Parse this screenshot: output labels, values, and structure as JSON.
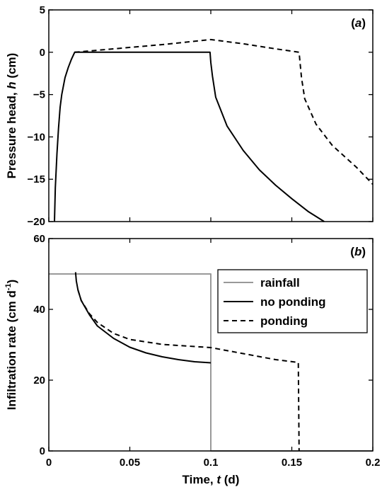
{
  "chart_data": [
    {
      "type": "line",
      "panel_label": "(a)",
      "ylabel": "Pressure head, h (cm)",
      "ylim": [
        -20,
        5
      ],
      "yticks": [
        5,
        0,
        -5,
        -10,
        -15,
        -20
      ],
      "xlim": [
        0,
        0.2
      ],
      "series": [
        {
          "style": "solid",
          "color": "#000000",
          "points": [
            [
              0.0035,
              -20
            ],
            [
              0.004,
              -16
            ],
            [
              0.005,
              -12
            ],
            [
              0.006,
              -9
            ],
            [
              0.007,
              -6.5
            ],
            [
              0.008,
              -5
            ],
            [
              0.01,
              -3
            ],
            [
              0.012,
              -1.8
            ],
            [
              0.014,
              -0.8
            ],
            [
              0.016,
              0
            ],
            [
              0.04,
              0
            ],
            [
              0.07,
              0
            ],
            [
              0.0995,
              0
            ],
            [
              0.1,
              -1.2
            ],
            [
              0.101,
              -2.8
            ],
            [
              0.103,
              -5.3
            ],
            [
              0.11,
              -8.7
            ],
            [
              0.12,
              -11.6
            ],
            [
              0.13,
              -13.9
            ],
            [
              0.14,
              -15.7
            ],
            [
              0.15,
              -17.3
            ],
            [
              0.16,
              -18.8
            ],
            [
              0.17,
              -20
            ]
          ]
        },
        {
          "style": "dashed",
          "color": "#000000",
          "points": [
            [
              0.016,
              0
            ],
            [
              0.04,
              0.4
            ],
            [
              0.07,
              0.9
            ],
            [
              0.1,
              1.5
            ],
            [
              0.12,
              1.0
            ],
            [
              0.14,
              0.4
            ],
            [
              0.1545,
              0
            ],
            [
              0.155,
              -1
            ],
            [
              0.156,
              -3
            ],
            [
              0.158,
              -5.5
            ],
            [
              0.165,
              -8.5
            ],
            [
              0.175,
              -11
            ],
            [
              0.19,
              -13.6
            ],
            [
              0.2,
              -15.6
            ]
          ]
        }
      ]
    },
    {
      "type": "line",
      "panel_label": "(b)",
      "ylabel": "Infiltration rate (cm d-1)",
      "xlabel": "Time, t (d)",
      "ylim": [
        0,
        60
      ],
      "yticks": [
        0,
        20,
        40,
        60
      ],
      "xlim": [
        0,
        0.2
      ],
      "xticks": [
        0,
        0.05,
        0.1,
        0.15,
        0.2
      ],
      "xtick_labels": [
        "0",
        "0.05",
        "0.1",
        "0.15",
        "0.2"
      ],
      "legend_position": "top-right",
      "series": [
        {
          "name": "rainfall",
          "style": "solid",
          "color": "#999999",
          "points": [
            [
              0,
              50
            ],
            [
              0.1,
              50
            ],
            [
              0.1,
              0
            ],
            [
              0.2,
              0
            ]
          ]
        },
        {
          "name": "no ponding",
          "style": "solid",
          "color": "#000000",
          "points": [
            [
              0.0165,
              50.5
            ],
            [
              0.017,
              48
            ],
            [
              0.018,
              45.5
            ],
            [
              0.02,
              42.5
            ],
            [
              0.025,
              38.5
            ],
            [
              0.03,
              35.3
            ],
            [
              0.04,
              31.8
            ],
            [
              0.05,
              29.3
            ],
            [
              0.06,
              27.7
            ],
            [
              0.07,
              26.6
            ],
            [
              0.08,
              25.8
            ],
            [
              0.09,
              25.2
            ],
            [
              0.1,
              24.9
            ]
          ]
        },
        {
          "name": "ponding",
          "style": "dashed",
          "color": "#000000",
          "points": [
            [
              0.018,
              45.5
            ],
            [
              0.02,
              42.5
            ],
            [
              0.025,
              38.8
            ],
            [
              0.03,
              36.3
            ],
            [
              0.04,
              33.2
            ],
            [
              0.05,
              31.5
            ],
            [
              0.07,
              30.1
            ],
            [
              0.1,
              29.2
            ],
            [
              0.12,
              27.5
            ],
            [
              0.14,
              25.8
            ],
            [
              0.154,
              25
            ],
            [
              0.1545,
              0
            ]
          ]
        }
      ]
    }
  ]
}
